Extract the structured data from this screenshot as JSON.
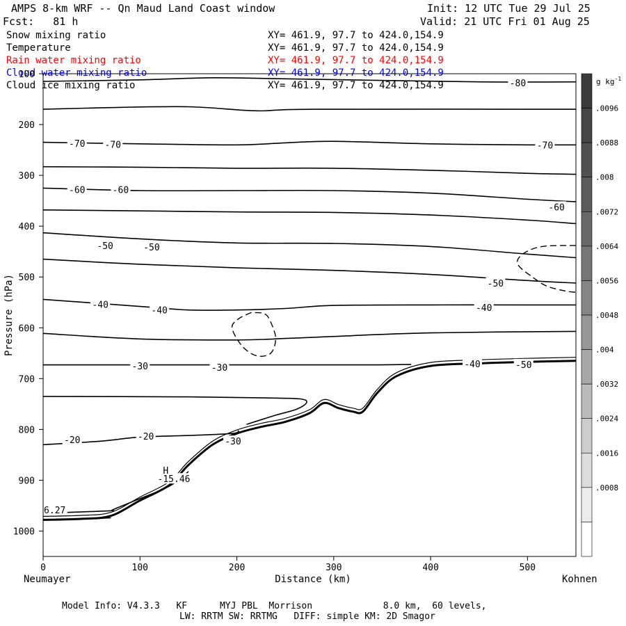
{
  "header": {
    "title": "AMPS 8-km WRF -- Qn Maud Land Coast window",
    "forecast": "Fcst:   81 h",
    "init": "Init: 12 UTC Tue 29 Jul 25",
    "valid": "Valid: 21 UTC Fri 01 Aug 25"
  },
  "fields": [
    {
      "name": "Snow mixing ratio",
      "xy": "XY= 461.9, 97.7 to 424.0,154.9",
      "color": "#000000"
    },
    {
      "name": "Temperature",
      "xy": "XY= 461.9, 97.7 to 424.0,154.9",
      "color": "#000000"
    },
    {
      "name": "Rain water mixing ratio",
      "xy": "XY= 461.9, 97.7 to 424.0,154.9",
      "color": "#ff0000"
    },
    {
      "name": "Cloud water mixing ratio",
      "xy": "XY= 461.9, 97.7 to 424.0,154.9",
      "color": "#0000ff"
    },
    {
      "name": "Cloud ice mixing ratio",
      "xy": "XY= 461.9, 97.7 to 424.0,154.9",
      "color": "#000000"
    }
  ],
  "footer": {
    "line1": "Model Info: V4.3.3   KF      MYJ PBL  Morrison             8.0 km,  60 levels,",
    "line2": "LW: RRTM SW: RRTMG   DIFF: simple KM: 2D Smagor"
  },
  "chart_data": {
    "type": "line",
    "subtype": "vertical cross-section contour",
    "xlabel": "Distance (km)",
    "ylabel": "Pressure (hPa)",
    "x_left_label": "Neumayer",
    "x_right_label": "Kohnen",
    "xlim": [
      0,
      550
    ],
    "ylim": [
      1050,
      100
    ],
    "y_scale": "linear (inverted)",
    "x_ticks": [
      0,
      100,
      200,
      300,
      400,
      500
    ],
    "y_ticks": [
      100,
      200,
      300,
      400,
      500,
      600,
      700,
      800,
      900,
      1000
    ],
    "colorbar": {
      "unit": "g kg",
      "unit_sup": "-1",
      "ticks": [
        ".0096",
        ".0088",
        ".008",
        ".0072",
        ".0064",
        ".0056",
        ".0048",
        ".004",
        ".0032",
        ".0024",
        ".0016",
        ".0008"
      ],
      "levels": [
        0.0104,
        0.0096,
        0.0088,
        0.008,
        0.0072,
        0.0064,
        0.0056,
        0.0048,
        0.004,
        0.0032,
        0.0024,
        0.0016,
        0.0008,
        0
      ],
      "colors": [
        "#3a3a3a",
        "#454545",
        "#505050",
        "#5c5c5c",
        "#686868",
        "#767676",
        "#858585",
        "#969696",
        "#a8a8a8",
        "#bbbbbb",
        "#cccccc",
        "#dcdcdc",
        "#ececec",
        "#ffffff"
      ]
    },
    "isotherm_labels": [
      {
        "text": "-80",
        "x": 490,
        "p": 118
      },
      {
        "text": "-70",
        "x": 35,
        "p": 237
      },
      {
        "text": "-70",
        "x": 72,
        "p": 239
      },
      {
        "text": "-70",
        "x": 518,
        "p": 240
      },
      {
        "text": "-60",
        "x": 35,
        "p": 328
      },
      {
        "text": "-60",
        "x": 80,
        "p": 328
      },
      {
        "text": "-60",
        "x": 530,
        "p": 362
      },
      {
        "text": "-50",
        "x": 64,
        "p": 438
      },
      {
        "text": "-50",
        "x": 112,
        "p": 441
      },
      {
        "text": "-50",
        "x": 467,
        "p": 512
      },
      {
        "text": "-40",
        "x": 59,
        "p": 554
      },
      {
        "text": "-40",
        "x": 120,
        "p": 565
      },
      {
        "text": "-40",
        "x": 455,
        "p": 560
      },
      {
        "text": "-30",
        "x": 100,
        "p": 675
      },
      {
        "text": "-30",
        "x": 182,
        "p": 678
      },
      {
        "text": "-40",
        "x": 443,
        "p": 671
      },
      {
        "text": "-50",
        "x": 496,
        "p": 672
      },
      {
        "text": "-20",
        "x": 30,
        "p": 820
      },
      {
        "text": "-20",
        "x": 106,
        "p": 813
      },
      {
        "text": "-30",
        "x": 196,
        "p": 823
      },
      {
        "text": "-15.46",
        "x": 135,
        "p": 897
      },
      {
        "text": "6.27",
        "x": 12,
        "p": 958
      }
    ],
    "extremum": {
      "text": "H",
      "x": 128,
      "p": 880
    },
    "isotherm_lines": [
      {
        "x": [
          0,
          100,
          175,
          250,
          450,
          550
        ],
        "p": [
          115,
          112,
          108,
          110,
          116,
          116
        ]
      },
      {
        "x": [
          0,
          60,
          150,
          220,
          280,
          550
        ],
        "p": [
          170,
          167,
          165,
          173,
          170,
          170
        ]
      },
      {
        "x": [
          0,
          100,
          200,
          250,
          300,
          400,
          500,
          550
        ],
        "p": [
          235,
          238,
          240,
          236,
          233,
          238,
          240,
          240
        ]
      },
      {
        "x": [
          0,
          100,
          200,
          300,
          400,
          500,
          550
        ],
        "p": [
          283,
          284,
          286,
          286,
          290,
          296,
          298
        ]
      },
      {
        "x": [
          0,
          100,
          200,
          300,
          400,
          500,
          550
        ],
        "p": [
          325,
          330,
          330,
          330,
          335,
          347,
          352
        ]
      },
      {
        "x": [
          0,
          100,
          200,
          300,
          400,
          500,
          550
        ],
        "p": [
          368,
          370,
          372,
          373,
          378,
          388,
          395
        ]
      },
      {
        "x": [
          0,
          100,
          200,
          300,
          400,
          500,
          550
        ],
        "p": [
          413,
          425,
          433,
          434,
          440,
          455,
          462
        ]
      },
      {
        "x": [
          0,
          100,
          200,
          300,
          400,
          500,
          550
        ],
        "p": [
          465,
          475,
          482,
          487,
          495,
          507,
          512
        ]
      },
      {
        "x": [
          0,
          100,
          150,
          200,
          250,
          300,
          400,
          500,
          550
        ],
        "p": [
          544,
          558,
          565,
          565,
          562,
          556,
          555,
          555,
          555
        ]
      },
      {
        "x": [
          0,
          100,
          200,
          250,
          300,
          400,
          550
        ],
        "p": [
          611,
          622,
          624,
          621,
          617,
          610,
          607
        ]
      },
      {
        "x": [
          0,
          100,
          200,
          280,
          340,
          380
        ],
        "p": [
          673,
          673,
          673,
          673,
          673,
          672
        ]
      },
      {
        "x": [
          0,
          150,
          230,
          265,
          272,
          262,
          240,
          210
        ],
        "p": [
          735,
          736,
          738,
          740,
          747,
          760,
          772,
          790
        ]
      },
      {
        "x": [
          0,
          60,
          100,
          150,
          195,
          202
        ],
        "p": [
          830,
          823,
          815,
          812,
          808,
          802
        ]
      },
      {
        "x": [
          0,
          30,
          70,
          72,
          95,
          130,
          150
        ],
        "p": [
          965,
          963,
          960,
          958,
          940,
          912,
          883
        ]
      },
      {
        "x": [
          0,
          30,
          60,
          70
        ],
        "p": [
          978,
          977,
          975,
          974
        ]
      }
    ],
    "terrain": {
      "x": [
        0,
        40,
        70,
        100,
        130,
        150,
        175,
        200,
        225,
        250,
        275,
        290,
        305,
        320,
        330,
        345,
        365,
        400,
        450,
        500,
        550
      ],
      "p": [
        978,
        976,
        970,
        940,
        910,
        870,
        830,
        808,
        795,
        785,
        768,
        748,
        758,
        765,
        765,
        728,
        695,
        675,
        670,
        667,
        665
      ]
    },
    "dashed_contours": [
      {
        "x": [
          215,
          202,
          195,
          205,
          220,
          235,
          240,
          234,
          228,
          215
        ],
        "p": [
          570,
          582,
          600,
          635,
          655,
          650,
          620,
          585,
          572,
          570
        ]
      },
      {
        "x": [
          550,
          515,
          495,
          490,
          505,
          520,
          540,
          550
        ],
        "p": [
          438,
          440,
          455,
          475,
          500,
          518,
          528,
          530
        ]
      }
    ]
  }
}
